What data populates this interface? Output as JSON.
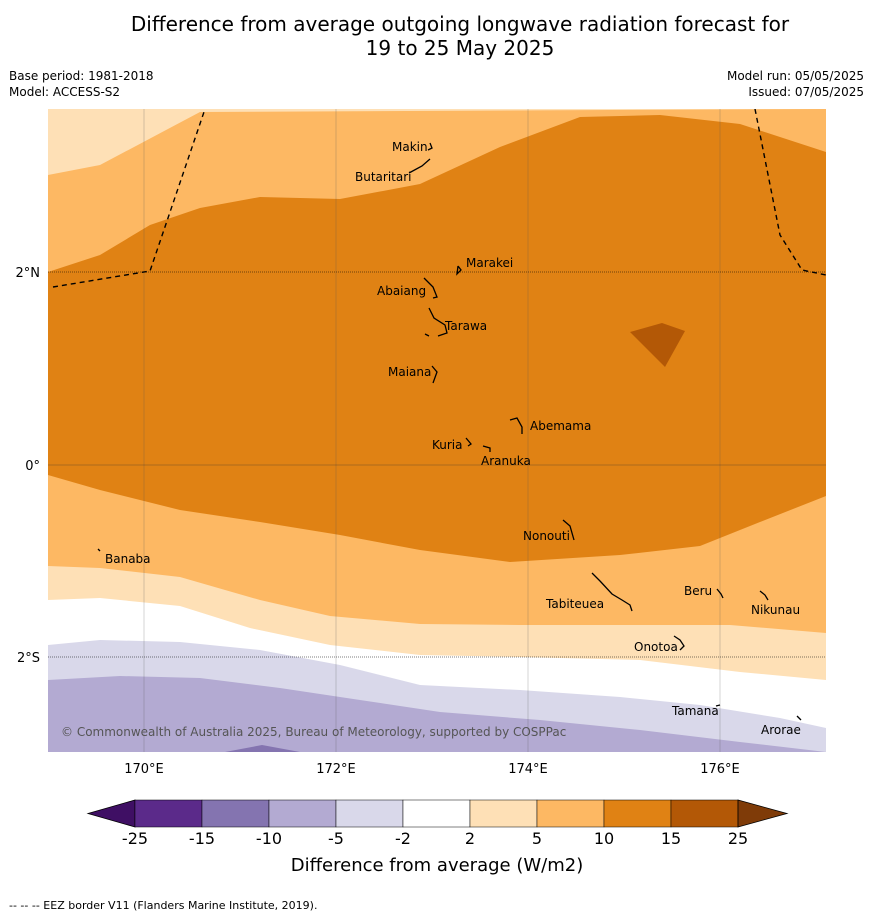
{
  "title": {
    "line1": "Difference from average outgoing longwave radiation forecast for",
    "line2": "19 to 25 May 2025"
  },
  "meta": {
    "base_period": "Base period: 1981-2018",
    "model": "Model: ACCESS-S2",
    "model_run": "Model run: 05/05/2025",
    "issued": "Issued: 07/05/2025"
  },
  "axes": {
    "lon_labels": [
      "170°E",
      "172°E",
      "174°E",
      "176°E"
    ],
    "lat_labels": [
      "2°N",
      "0°",
      "2°S"
    ]
  },
  "places": [
    "Makin",
    "Butaritari",
    "Marakei",
    "Abaiang",
    "Tarawa",
    "Maiana",
    "Abemama",
    "Kuria",
    "Aranuka",
    "Nonouti",
    "Banaba",
    "Tabiteuea",
    "Beru",
    "Nikunau",
    "Onotoa",
    "Tamana",
    "Arorae"
  ],
  "copyright": "© Commonwealth of Australia 2025, Bureau of Meteorology, supported by COSPPac",
  "legend": {
    "ticks": [
      "-25",
      "-15",
      "-10",
      "-5",
      "-2",
      "2",
      "5",
      "10",
      "15",
      "25"
    ],
    "title": "Difference from average (W/m2)",
    "colors": [
      "#3f0f64",
      "#5b2a8a",
      "#8474b0",
      "#b3aad2",
      "#d9d8ea",
      "#ffffff",
      "#fee0b6",
      "#fdb863",
      "#e08214",
      "#b35806",
      "#7f3b08"
    ]
  },
  "footer": "--  --  -- EEZ border V11 (Flanders Marine Institute, 2019)."
}
